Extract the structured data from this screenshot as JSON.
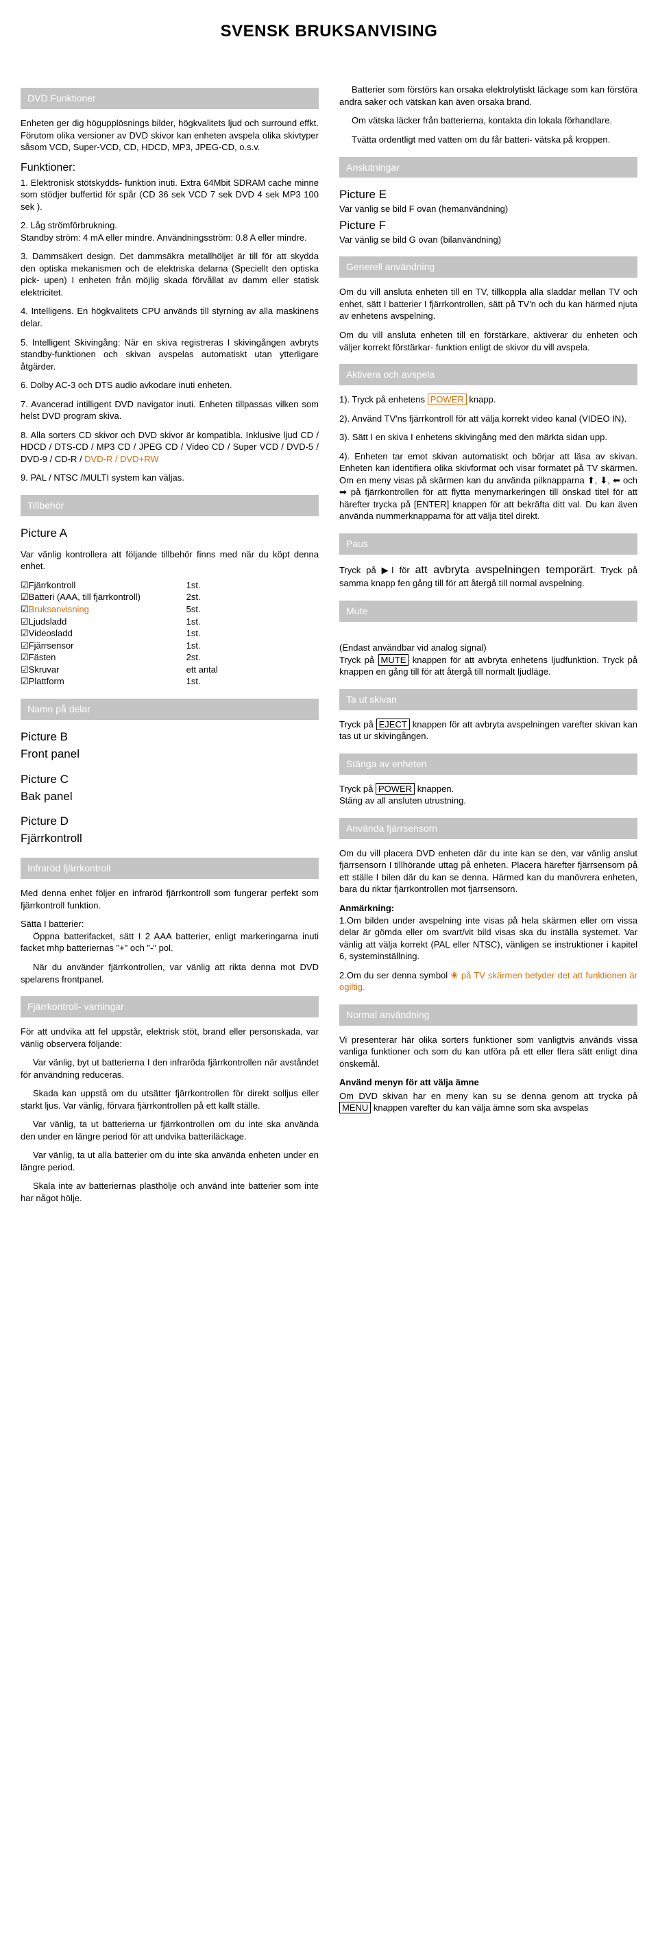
{
  "pageTitle": "SVENSK BRUKSANVISING",
  "left": {
    "dvdFunktioner": {
      "header": "DVD Funktioner",
      "intro": "Enheten ger dig högupplösnings bilder, högkvalitets ljud och surround effkt. Förutom olika versioner av DVD skivor kan enheten avspela olika skivtyper såsom VCD, Super-VCD, CD, HDCD, MP3, JPEG-CD, o.s.v.",
      "funktionerLabel": "Funktioner:",
      "f1": "1. Elektronisk stötskydds- funktion inuti. Extra 64Mbit SDRAM cache minne som stödjer buffertid för spår (CD 36 sek  VCD 7 sek  DVD 4 sek  MP3 100 sek ).",
      "f2": "2. Låg strömförbrukning.",
      "f2b": "Standby ström: 4 mA eller mindre. Användningsström: 0.8 A eller mindre.",
      "f3": "3. Dammsäkert design. Det dammsäkra metallhöljet är till för att skydda den optiska mekanismen och de elektriska delarna (Speciellt den optiska pick- upen) I enheten från möjlig skada förvållat av damm eller statisk elektricitet.",
      "f4": "4. Intelligens. En högkvalitets CPU används till styrning av alla maskinens delar.",
      "f5": "5. Intelligent Skivingång: När en skiva registreras I skivingången avbryts standby-funktionen och skivan avspelas automatiskt utan ytterligare åtgärder.",
      "f6": "6. Dolby AC-3 och DTS audio avkodare inuti enheten.",
      "f7": "7. Avancerad intilligent DVD navigator inuti. Enheten tillpassas vilken som helst DVD program skiva.",
      "f8a": "8. Alla sorters CD skivor och DVD skivor är kompatibla. Inklusive ljud CD / HDCD / DTS-CD / MP3 CD / JPEG CD / Video CD / Super VCD / DVD-5 / DVD-9 / CD-R / ",
      "f8b": "DVD-R / DVD+RW",
      "f9": "9. PAL / NTSC /MULTI system kan väljas."
    },
    "tillbehor": {
      "header": "Tillbehör",
      "picA": "Picture A",
      "intro": "Var vänlig kontrollera att följande tillbehör finns med när du köpt denna enhet.",
      "items": [
        {
          "name": "Fjärrkontroll",
          "qty": "1st."
        },
        {
          "name": "Batteri (AAA, till fjärrkontroll)",
          "qty": "2st."
        },
        {
          "name": "Bruksanvisning",
          "qty": "5st.",
          "orange": true
        },
        {
          "name": "Ljudsladd",
          "qty": "1st."
        },
        {
          "name": "Videosladd",
          "qty": "1st."
        },
        {
          "name": "Fjärrsensor",
          "qty": "1st."
        },
        {
          "name": "Fästen",
          "qty": "2st."
        },
        {
          "name": "Skruvar",
          "qty": "ett antal"
        },
        {
          "name": "Plattform",
          "qty": "1st."
        }
      ]
    },
    "namnDelar": {
      "header": "Namn på delar",
      "picB": "Picture B",
      "picBsub": "Front panel",
      "picC": "Picture C",
      "picCsub": "Bak panel",
      "picD": "Picture D",
      "picDsub": "Fjärrkontroll"
    },
    "infrarod": {
      "header": "Infraröd fjärrkontroll",
      "p1": "Med denna enhet följer en infraröd fjärrkontroll som fungerar perfekt som fjärrkontroll funktion.",
      "p2": "Sätta I batterier:",
      "p3": "Öppna batterifacket, sätt I 2 AAA batterier, enligt markeringarna inuti facket mhp batteriernas \"+\" och \"-\" pol.",
      "p4": "När du använder fjärrkontrollen, var vänlig att rikta denna mot DVD spelarens frontpanel."
    },
    "varningar": {
      "header": "Fjärrkontroll- varningar",
      "p1": "För att undvika att fel uppstår, elektrisk stöt, brand eller personskada, var vänlig observera följande:",
      "p2": "Var vänlig, byt ut batterierna I den infraröda fjärrkontrollen när avståndet för användning reduceras.",
      "p3": "Skada kan uppstå om du utsätter fjärrkontrollen för direkt solljus eller starkt ljus. Var vänlig, förvara fjärrkontrollen på ett kallt ställe.",
      "p4": "Var vänlig, ta ut batterierna ur fjärrkontrollen om du inte ska använda den under en längre period för att undvika batteriläckage.",
      "p5": "Var vänlig, ta ut alla batterier om du inte ska använda enheten under en längre period.",
      "p6": "Skala inte av batteriernas plasthölje och använd inte batterier som inte har något hölje."
    }
  },
  "right": {
    "battIntro": {
      "p1": "Batterier som förstörs kan orsaka elektrolytiskt läckage som kan förstöra andra saker och vätskan kan även orsaka brand.",
      "p2": "Om vätska läcker från batterierna, kontakta din lokala förhandlare.",
      "p3": "Tvätta ordentligt med vatten om du får batteri- vätska på kroppen."
    },
    "anslutningar": {
      "header": "Anslutningar",
      "picE": "Picture E",
      "picEtext": "Var vänlig se bild F ovan (hemanvändning)",
      "picF": "Picture F",
      "picFtext": "Var vänlig se bild G ovan (bilanvändning)"
    },
    "generell": {
      "header": "Generell användning",
      "p1": "Om du vill ansluta enheten till en TV, tillkoppla alla sladdar mellan TV och enhet, sätt I batterier I fjärrkontrollen, sätt på TV'n och du kan härmed njuta av enhetens avspelning.",
      "p2": "Om du vill ansluta enheten till en förstärkare, aktiverar du enheten och väljer korrekt förstärkar- funktion enligt de skivor du vill avspela."
    },
    "aktivera": {
      "header": "Aktivera och avspela",
      "s1a": "1). Tryck på enhetens ",
      "s1b": "POWER",
      "s1c": " knapp.",
      "s2": "2). Använd TV'ns fjärrkontroll för att välja korrekt video kanal (VIDEO IN).",
      "s3": "3). Sätt I en skiva I enhetens skivingång med den märkta sidan upp.",
      "s4": "4). Enheten tar emot skivan automatiskt och börjar att läsa av skivan. Enheten kan identifiera olika skivformat och visar formatet på TV skärmen. Om en meny visas på skärmen kan du använda pilknapparna ⬆, ⬇, ⬅ och ➡ på fjärrkontrollen för att flytta menymarkeringen till önskad titel för att härefter trycka på [ENTER] knappen för att bekräfta ditt val. Du kan även använda nummerknapparna för att välja titel direkt."
    },
    "paus": {
      "header": "Paus",
      "p1a": "Tryck på ▶I för ",
      "p1b": "att avbryta avspelningen temporärt",
      "p1c": ". Tryck på samma knapp fen gång till för att återgå till normal avspelning."
    },
    "mute": {
      "header": "Mute",
      "p1a": " (Endast användbar vid analog signal)\nTryck på ",
      "p1b": "MUTE",
      "p1c": " knappen för att avbryta enhetens ljudfunktion. Tryck på knappen en gång till för att återgå till normalt ljudläge."
    },
    "eject": {
      "header": "Ta ut skivan",
      "p1a": "Tryck på ",
      "p1b": "EJECT",
      "p1c": " knappen för att avbryta avspelningen varefter skivan kan tas ut ur skivingången."
    },
    "stanga": {
      "header": "Stänga av enheten",
      "p1a": "Tryck på ",
      "p1b": "POWER",
      "p1c": " knappen.",
      "p2": "Stäng av all ansluten utrustning."
    },
    "fjarrsensor": {
      "header": "Använda fjärrsensorn",
      "p1": "Om du vill placera DVD enheten där du inte kan se den, var vänlig anslut fjärrsensorn I tillhörande uttag på enheten. Placera härefter fjärrsensorn på ett ställe I bilen där du kan se denna. Härmed kan du manövrera enheten, bara du riktar fjärrkontrollen mot fjärrsensorn.",
      "anmLabel": "Anmärkning:",
      "p2": "1.Om bilden under avspelning inte visas på hela skärmen eller om vissa delar är gömda eller om svart/vit bild visas ska du inställa systemet. Var vänlig att välja korrekt (PAL eller NTSC), vänligen se instruktioner i kapitel 6, systeminställning.",
      "p3a": "2.Om du ser denna symbol ",
      "p3b": "❀",
      "p3c": " på TV skärmen betyder det att funktionen är ogiltig."
    },
    "normal": {
      "header": "Normal användning",
      "p1": "Vi presenterar här olika sorters funktioner som vanligtvis används vissa vanliga funktioner och som du kan utföra på ett eller flera sätt enligt dina önskemål.",
      "sub": "Använd menyn för att välja ämne",
      "p2a": "Om DVD skivan har en meny kan su se denna genom att trycka på ",
      "p2b": "MENU",
      "p2c": " knappen varefter du kan välja ämne som ska avspelas"
    }
  }
}
